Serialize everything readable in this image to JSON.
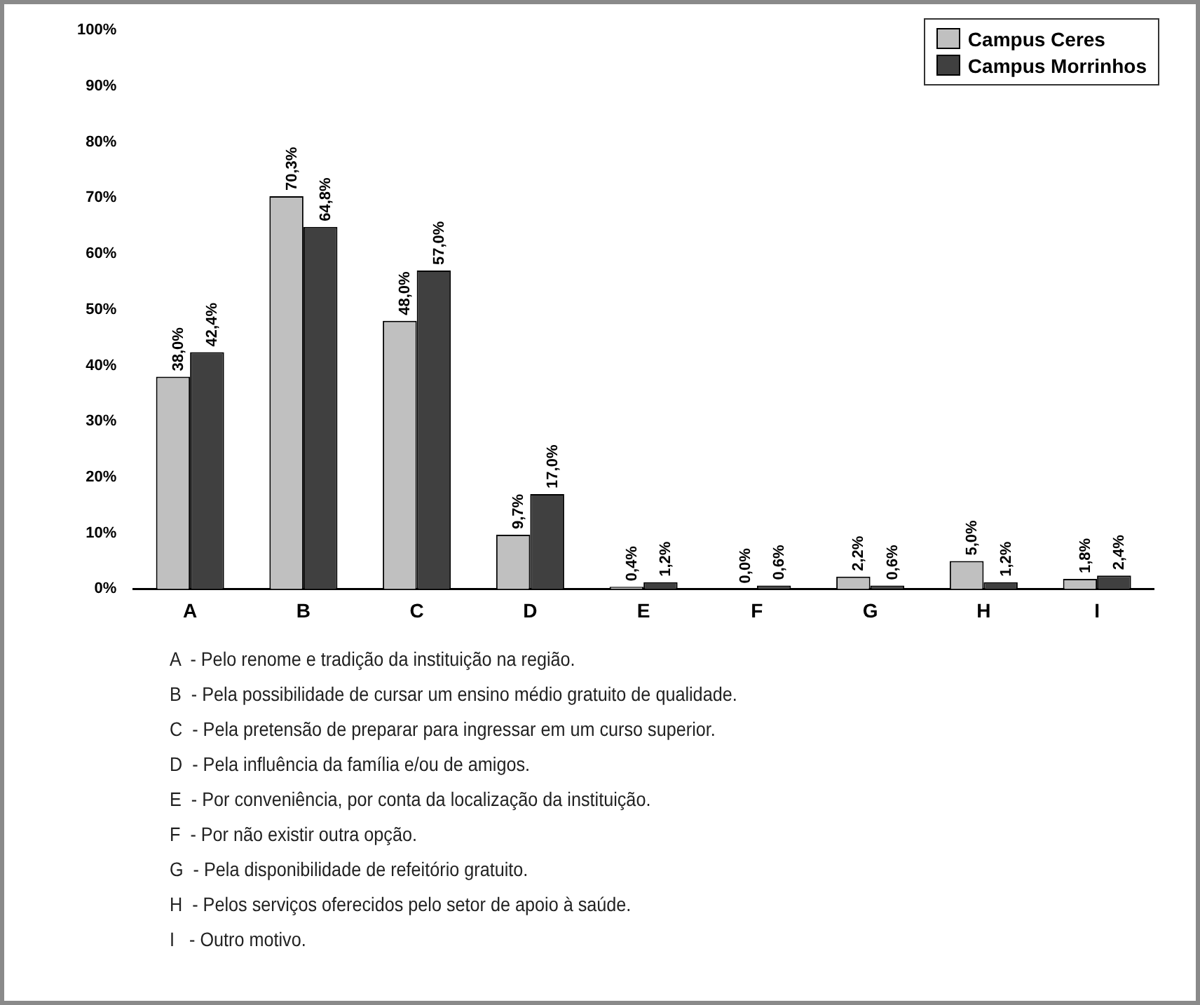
{
  "chart_data": {
    "type": "bar",
    "categories": [
      "A",
      "B",
      "C",
      "D",
      "E",
      "F",
      "G",
      "H",
      "I"
    ],
    "series": [
      {
        "name": "Campus Ceres",
        "color": "#c0c0c0",
        "values": [
          38.0,
          70.3,
          48.0,
          9.7,
          0.4,
          0.0,
          2.2,
          5.0,
          1.8
        ],
        "value_labels": [
          "38,0%",
          "70,3%",
          "48,0%",
          "9,7%",
          "0,4%",
          "0,0%",
          "2,2%",
          "5,0%",
          "1,8%"
        ]
      },
      {
        "name": "Campus Morrinhos",
        "color": "#404040",
        "values": [
          42.4,
          64.8,
          57.0,
          17.0,
          1.2,
          0.6,
          0.6,
          1.2,
          2.4
        ],
        "value_labels": [
          "42,4%",
          "64,8%",
          "57,0%",
          "17,0%",
          "1,2%",
          "0,6%",
          "0,6%",
          "1,2%",
          "2,4%"
        ]
      }
    ],
    "ylim": [
      0,
      100
    ],
    "yticks": [
      {
        "value": 0,
        "label": "0%"
      },
      {
        "value": 10,
        "label": "10%"
      },
      {
        "value": 20,
        "label": "20%"
      },
      {
        "value": 30,
        "label": "30%"
      },
      {
        "value": 40,
        "label": "40%"
      },
      {
        "value": 50,
        "label": "50%"
      },
      {
        "value": 60,
        "label": "60%"
      },
      {
        "value": 70,
        "label": "70%"
      },
      {
        "value": 80,
        "label": "80%"
      },
      {
        "value": 90,
        "label": "90%"
      },
      {
        "value": 100,
        "label": "100%"
      }
    ],
    "grid": false,
    "legend": "top right",
    "annotations": [
      "A  - Pelo renome e tradição da instituição na região.",
      "B  - Pela possibilidade de cursar um ensino médio gratuito de qualidade.",
      "C  - Pela pretensão de preparar para ingressar em um curso superior.",
      "D  - Pela influência da família e/ou de amigos.",
      "E  - Por conveniência, por conta da localização da instituição.",
      "F  - Por não existir outra opção.",
      "G  - Pela disponibilidade de refeitório gratuito.",
      "H  - Pelos serviços oferecidos pelo setor de apoio à saúde.",
      "I   - Outro motivo."
    ]
  }
}
